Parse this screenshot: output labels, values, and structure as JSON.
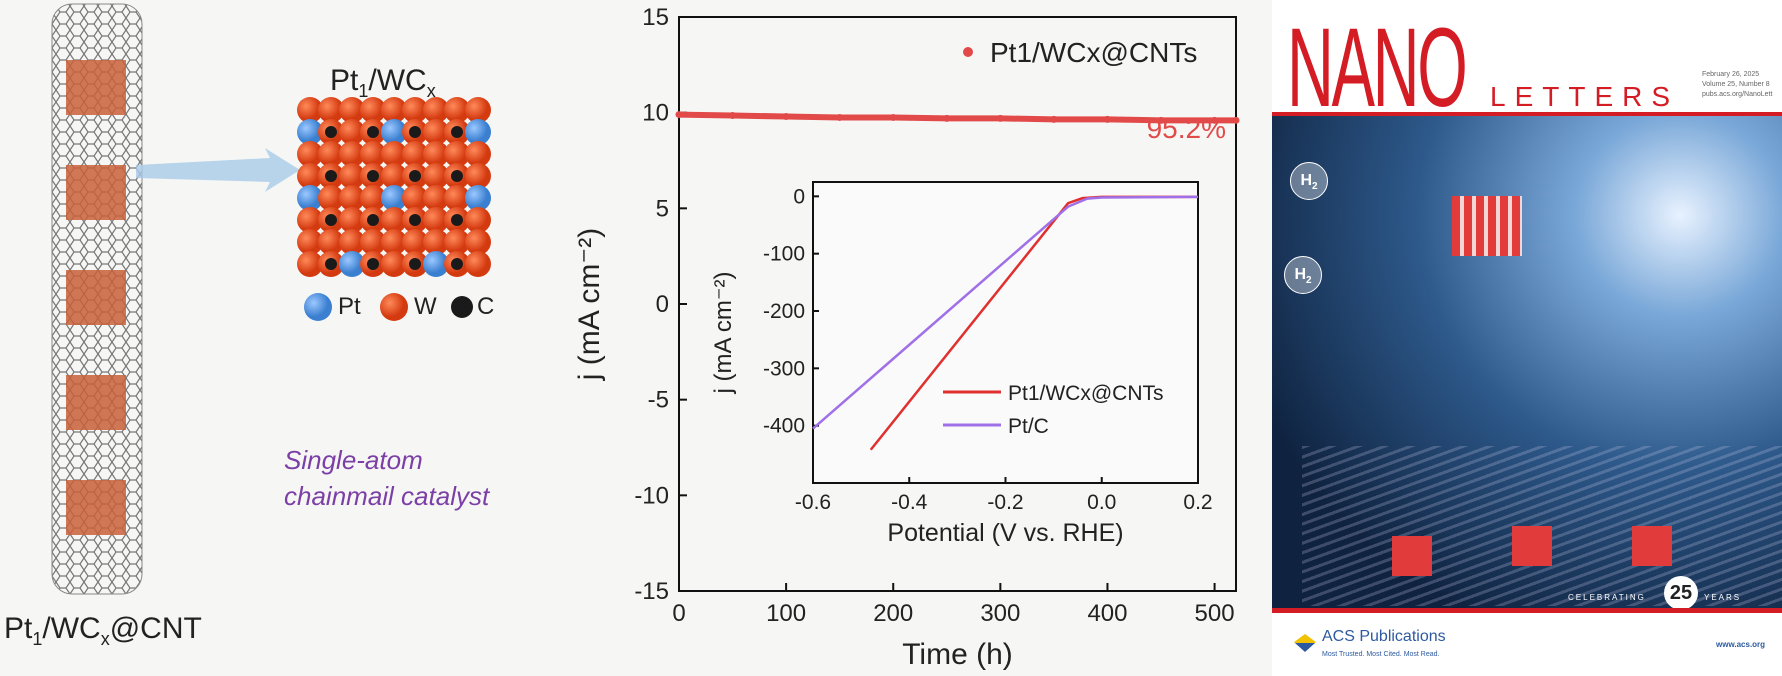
{
  "left_panel": {
    "cnt_label": "Pt1/WCx@CNT",
    "cube_title": "Pt1/WCx",
    "legend": [
      {
        "label": "Pt",
        "color": "#4a90e0"
      },
      {
        "label": "W",
        "color": "#e5451c"
      },
      {
        "label": "C",
        "color": "#1a1a1a"
      }
    ],
    "caption_line1": "Single-atom",
    "caption_line2": "chainmail catalyst",
    "caption_color": "#7b3fa6"
  },
  "chart_data": [
    {
      "type": "scatter",
      "title": "",
      "xlabel": "Time (h)",
      "ylabel": "j (mA cm⁻²)",
      "xlim": [
        0,
        520
      ],
      "ylim": [
        -15,
        15
      ],
      "xticks": [
        0,
        100,
        200,
        300,
        400,
        500
      ],
      "yticks": [
        -15,
        -10,
        -5,
        0,
        5,
        10,
        15
      ],
      "series": [
        {
          "name": "Pt1/WCx@CNTs",
          "color": "#e24a4a",
          "x": [
            0,
            50,
            100,
            150,
            200,
            250,
            300,
            350,
            400,
            450,
            500,
            520
          ],
          "y": [
            9.9,
            9.85,
            9.8,
            9.75,
            9.75,
            9.7,
            9.7,
            9.65,
            9.65,
            9.6,
            9.6,
            9.6
          ]
        }
      ],
      "annotation": "95.2%",
      "legend": "top-right"
    },
    {
      "type": "line",
      "title": "",
      "xlabel": "Potential (V vs. RHE)",
      "ylabel": "j (mA cm⁻²)",
      "xlim": [
        -0.6,
        0.2
      ],
      "ylim": [
        -500,
        25
      ],
      "xticks": [
        -0.6,
        -0.4,
        -0.2,
        0.0,
        0.2
      ],
      "yticks": [
        -400,
        -300,
        -200,
        -100,
        0
      ],
      "series": [
        {
          "name": "Pt1/WCx@CNTs",
          "color": "#e03030",
          "x": [
            -0.48,
            -0.07,
            -0.04,
            0.0,
            0.2
          ],
          "y": [
            -442,
            -12,
            -3,
            -1,
            -1
          ]
        },
        {
          "name": "Pt/C",
          "color": "#a070e8",
          "x": [
            -0.6,
            -0.07,
            -0.03,
            0.0,
            0.2
          ],
          "y": [
            -405,
            -18,
            -4,
            -2,
            -1
          ]
        }
      ],
      "legend": "bottom-right"
    }
  ],
  "cover": {
    "title_big": "NANO",
    "title_small": "LETTERS",
    "date": "February 26, 2025",
    "volume": "Volume 25, Number 8",
    "url_small": "pubs.acs.org/NanoLett",
    "h2": "H2",
    "celebrating": "CELEBRATING",
    "years_num": "25",
    "years": "YEARS",
    "publisher": "ACS Publications",
    "tagline": "Most Trusted. Most Cited. Most Read.",
    "website": "www.acs.org",
    "accent": "#d41c24"
  }
}
